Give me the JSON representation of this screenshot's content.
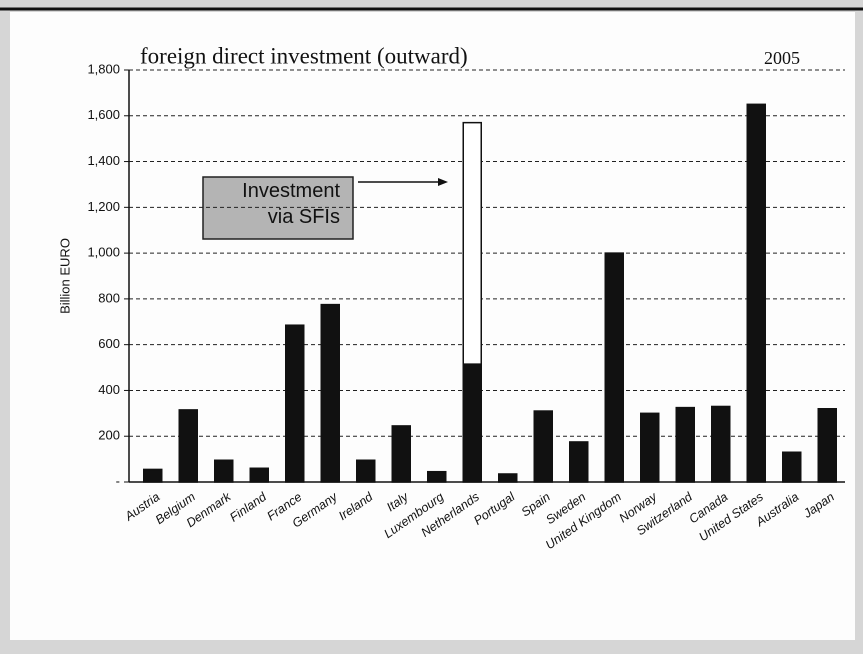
{
  "chart_data": {
    "type": "bar",
    "stacked": true,
    "title": "foreign direct investment (outward)",
    "subtitle": "2005",
    "ylabel": "Billion EURO",
    "annotation": "Investment\nvia SFIs",
    "categories": [
      "Austria",
      "Belgium",
      "Denmark",
      "Finland",
      "France",
      "Germany",
      "Ireland",
      "Italy",
      "Luxembourg",
      "Netherlands",
      "Portugal",
      "Spain",
      "Sweden",
      "United Kingdom",
      "Norway",
      "Switzerland",
      "Canada",
      "United States",
      "Australia",
      "Japan"
    ],
    "series": [
      {
        "color": "#111111",
        "values": [
          55,
          315,
          95,
          60,
          685,
          775,
          95,
          245,
          45,
          515,
          35,
          310,
          175,
          1000,
          300,
          325,
          330,
          1650,
          130,
          320
        ]
      },
      {
        "color": "#ffffff",
        "values": [
          null,
          null,
          null,
          null,
          null,
          null,
          null,
          null,
          null,
          1055,
          null,
          null,
          null,
          null,
          null,
          null,
          null,
          null,
          null,
          null
        ]
      }
    ],
    "ylim": [
      0,
      1800
    ],
    "yticks": [
      {
        "value": 0,
        "label": "-"
      },
      200,
      400,
      600,
      800,
      {
        "value": 1000,
        "label": "1,000"
      },
      {
        "value": 1200,
        "label": "1,200"
      },
      {
        "value": 1400,
        "label": "1,400"
      },
      {
        "value": 1600,
        "label": "1,600"
      },
      {
        "value": 1800,
        "label": "1,800"
      }
    ],
    "grid": true
  }
}
